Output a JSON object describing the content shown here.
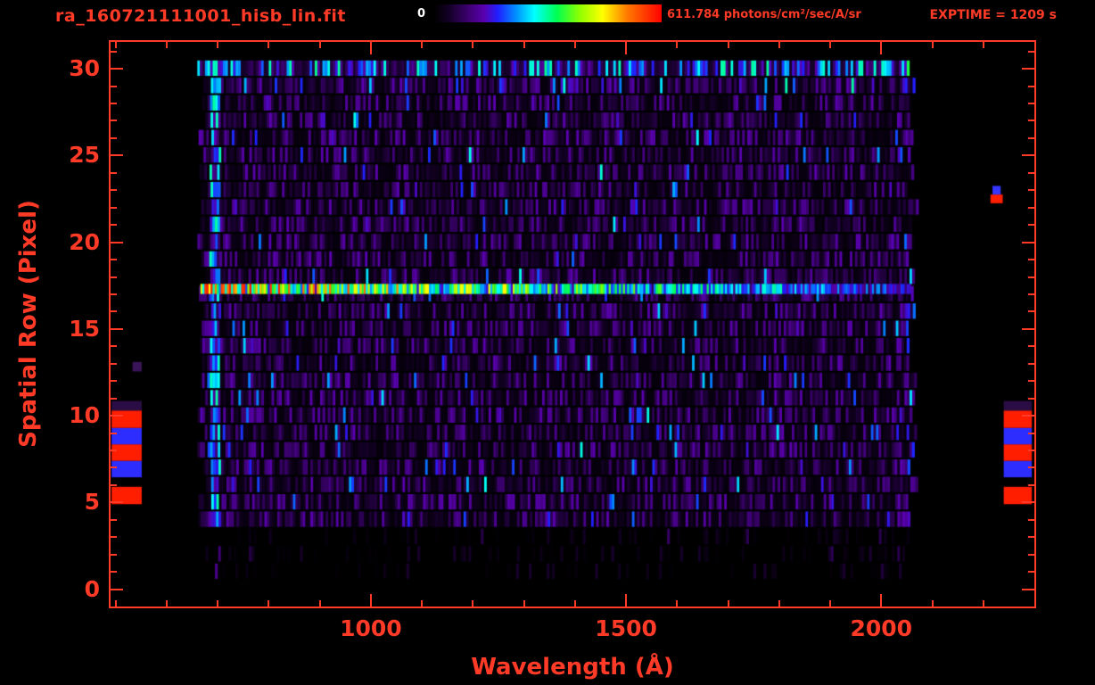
{
  "colors": {
    "accent": "#ff3b28",
    "background": "#000000",
    "colorbar_zero_label": "#ffffff"
  },
  "header": {
    "title": "ra_160721111001_hisb_lin.fit",
    "exptime_label": "EXPTIME = 1209 s",
    "colorbar": {
      "min_label": "0",
      "max_label": "611.784 photons/cm²/sec/A/sr"
    }
  },
  "chart_data": {
    "type": "heatmap",
    "title": "ra_160721111001_hisb_lin.fit",
    "xlabel": "Wavelength (Å)",
    "ylabel": "Spatial Row (Pixel)",
    "xlim": [
      490,
      2300
    ],
    "ylim": [
      -1,
      31.55
    ],
    "x_major_ticks": [
      1000,
      1500,
      2000
    ],
    "x_minor_step": 100,
    "y_major_ticks": [
      0,
      5,
      10,
      15,
      20,
      25,
      30
    ],
    "y_minor_step": 1,
    "colorbar": {
      "min": 0,
      "max": 611.784,
      "units": "photons/cm²/sec/A/sr",
      "colormap": "rainbow"
    },
    "exposure_time_s": 1209,
    "data_extent": {
      "x": [
        660,
        2068
      ],
      "rows": [
        1,
        30.5
      ]
    },
    "colormap_stops": [
      [
        0.0,
        "#000000"
      ],
      [
        0.07,
        "#16002a"
      ],
      [
        0.15,
        "#3c0070"
      ],
      [
        0.22,
        "#5a00b0"
      ],
      [
        0.28,
        "#2020ff"
      ],
      [
        0.36,
        "#0090ff"
      ],
      [
        0.44,
        "#00ffff"
      ],
      [
        0.54,
        "#00ff50"
      ],
      [
        0.64,
        "#90ff00"
      ],
      [
        0.74,
        "#ffff00"
      ],
      [
        0.85,
        "#ff7800"
      ],
      [
        1.0,
        "#ff0000"
      ]
    ],
    "noise": {
      "seed": 20160721,
      "column_step": 5,
      "description": "faint purple/blue detector noise over black background"
    },
    "features": {
      "emission_row": {
        "x": [
          666,
          2058
        ],
        "rows": [
          17.02,
          17.6
        ],
        "description": "bright horizontal emission line, yellow/green/red at short wavelengths fading to cyan/blue at long wavelengths"
      },
      "bright_top_row": {
        "row": 30,
        "description": "elevated multicolor blue/cyan noise across the top spatial row"
      },
      "bright_left_column": {
        "wavelength": 690,
        "rows": [
          4,
          30.5
        ],
        "description": "bright blue/cyan vertical stripe at short-wavelength edge of data"
      }
    },
    "margin_blocks": [
      {
        "x": [
          492,
          551
        ],
        "rows": [
          4.9,
          5.9
        ],
        "color": "#ff1e00"
      },
      {
        "x": [
          492,
          551
        ],
        "rows": [
          6.45,
          7.4
        ],
        "color": "#2d2dff"
      },
      {
        "x": [
          492,
          551
        ],
        "rows": [
          7.4,
          8.35
        ],
        "color": "#ff1e00"
      },
      {
        "x": [
          492,
          551
        ],
        "rows": [
          8.35,
          9.3
        ],
        "color": "#2d2dff"
      },
      {
        "x": [
          492,
          551
        ],
        "rows": [
          9.3,
          10.3
        ],
        "color": "#ff1e00"
      },
      {
        "x": [
          492,
          551
        ],
        "rows": [
          10.3,
          10.85
        ],
        "color": "#2b0d45"
      },
      {
        "x": [
          533,
          551
        ],
        "rows": [
          12.55,
          13.1
        ],
        "color": "#3a1458"
      },
      {
        "x": [
          2240,
          2295
        ],
        "rows": [
          4.9,
          5.9
        ],
        "color": "#ff1e00"
      },
      {
        "x": [
          2240,
          2295
        ],
        "rows": [
          6.45,
          7.4
        ],
        "color": "#2d2dff"
      },
      {
        "x": [
          2240,
          2295
        ],
        "rows": [
          7.4,
          8.35
        ],
        "color": "#ff1e00"
      },
      {
        "x": [
          2240,
          2295
        ],
        "rows": [
          8.35,
          9.3
        ],
        "color": "#2d2dff"
      },
      {
        "x": [
          2240,
          2295
        ],
        "rows": [
          9.3,
          10.3
        ],
        "color": "#ff1e00"
      },
      {
        "x": [
          2240,
          2295
        ],
        "rows": [
          10.3,
          10.85
        ],
        "color": "#2b0d45"
      },
      {
        "x": [
          2214,
          2238
        ],
        "rows": [
          22.25,
          22.75
        ],
        "color": "#ff1e00"
      },
      {
        "x": [
          2218,
          2234
        ],
        "rows": [
          22.75,
          23.25
        ],
        "color": "#3535ff"
      }
    ]
  }
}
